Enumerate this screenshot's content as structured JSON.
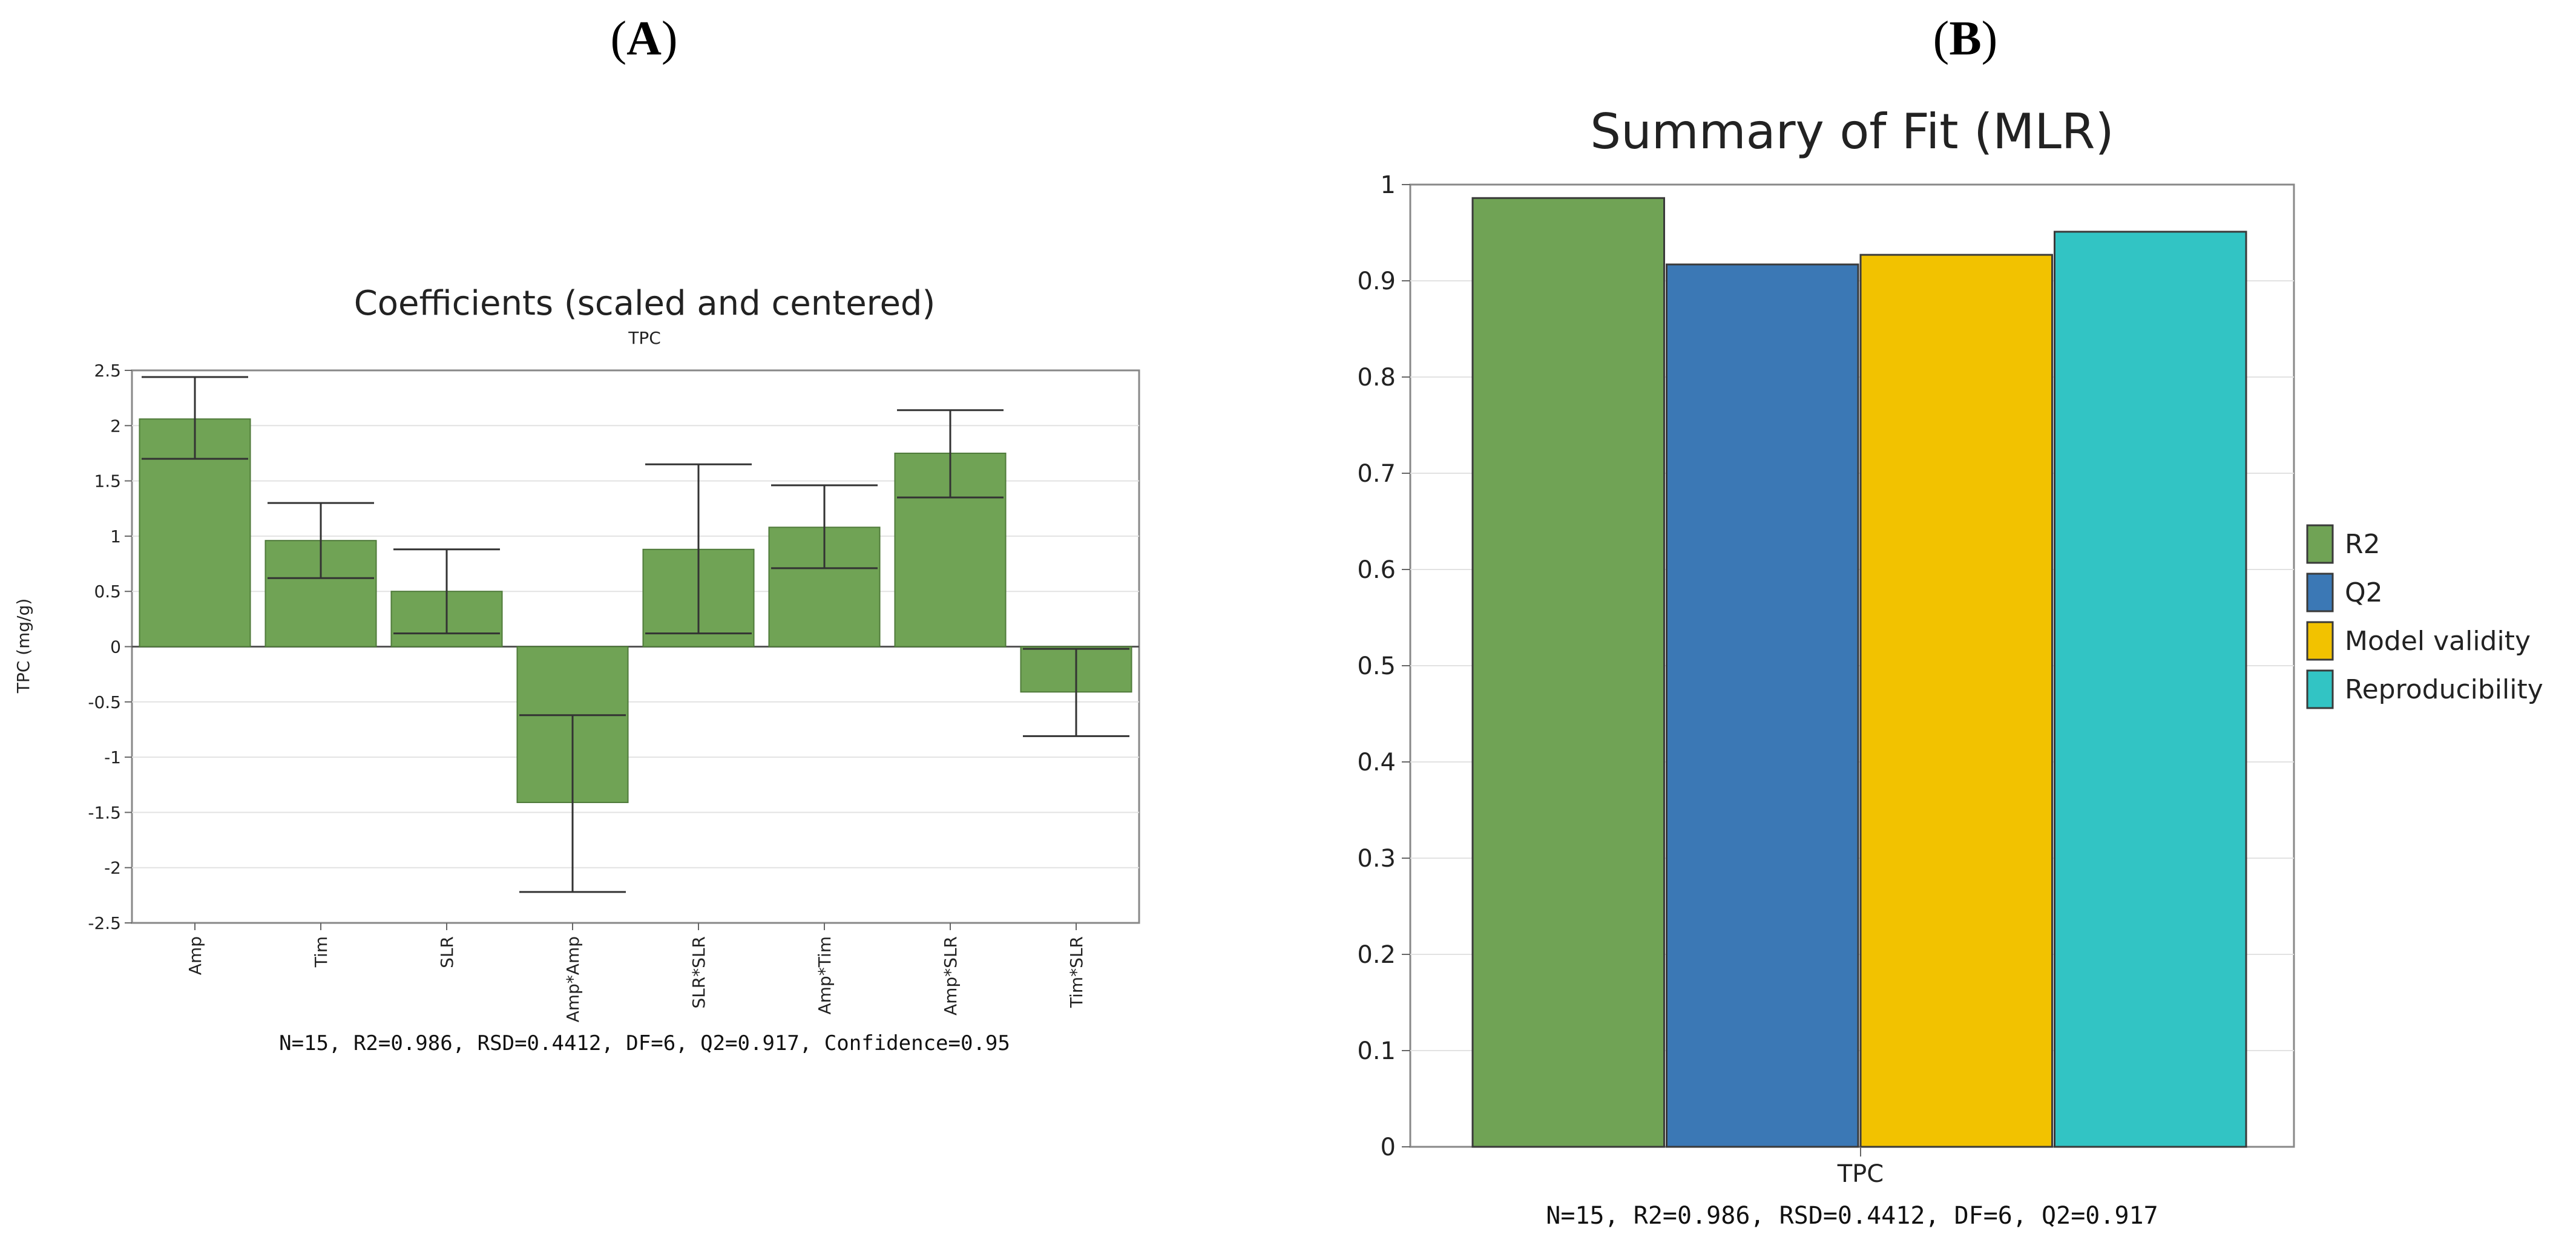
{
  "panels": {
    "a_label": "A",
    "b_label": "B"
  },
  "chart_data": [
    {
      "type": "bar",
      "title": "Coefficients (scaled and centered)",
      "subtitle": "TPC",
      "ylabel": "TPC (mg/g)",
      "xlabel": "",
      "ylim": [
        -2.5,
        2.5
      ],
      "yticks": [
        2.5,
        2,
        1.5,
        1,
        0.5,
        0,
        -0.5,
        -1,
        -1.5,
        -2,
        -2.5
      ],
      "ytick_labels": [
        "2.5",
        "2",
        "1.5",
        "1",
        "0.5",
        "0",
        "-0.5",
        "-1",
        "-1.5",
        "-2",
        "-2.5"
      ],
      "categories": [
        "Amp",
        "Tim",
        "SLR",
        "Amp*Amp",
        "SLR*SLR",
        "Amp*Tim",
        "Amp*SLR",
        "Tim*SLR"
      ],
      "values": [
        2.06,
        0.96,
        0.5,
        -1.41,
        0.88,
        1.08,
        1.75,
        -0.41
      ],
      "error_low": [
        1.7,
        0.62,
        0.12,
        -2.22,
        0.12,
        0.71,
        1.35,
        -0.81
      ],
      "error_high": [
        2.44,
        1.3,
        0.88,
        -0.62,
        1.65,
        1.46,
        2.14,
        -0.02
      ],
      "bar_color": "#70a355",
      "grid": true,
      "footer": "N=15, R2=0.986, RSD=0.4412, DF=6, Q2=0.917, Confidence=0.95"
    },
    {
      "type": "bar",
      "title": "Summary of Fit (MLR)",
      "xlabel": "",
      "ylabel": "",
      "ylim": [
        0,
        1
      ],
      "yticks": [
        0,
        0.1,
        0.2,
        0.3,
        0.4,
        0.5,
        0.6,
        0.7,
        0.8,
        0.9,
        1
      ],
      "ytick_labels": [
        "0",
        "0.1",
        "0.2",
        "0.3",
        "0.4",
        "0.5",
        "0.6",
        "0.7",
        "0.8",
        "0.9",
        "1"
      ],
      "categories": [
        "TPC"
      ],
      "series": [
        {
          "name": "R2",
          "values": [
            0.986
          ],
          "color": "#70a355"
        },
        {
          "name": "Q2",
          "values": [
            0.917
          ],
          "color": "#3b78b5"
        },
        {
          "name": "Model validity",
          "values": [
            0.927
          ],
          "color": "#f2c200"
        },
        {
          "name": "Reproducibility",
          "values": [
            0.951
          ],
          "color": "#32c4c4"
        }
      ],
      "legend_position": "right",
      "grid": true,
      "footer": "N=15, R2=0.986, RSD=0.4412, DF=6, Q2=0.917"
    }
  ]
}
